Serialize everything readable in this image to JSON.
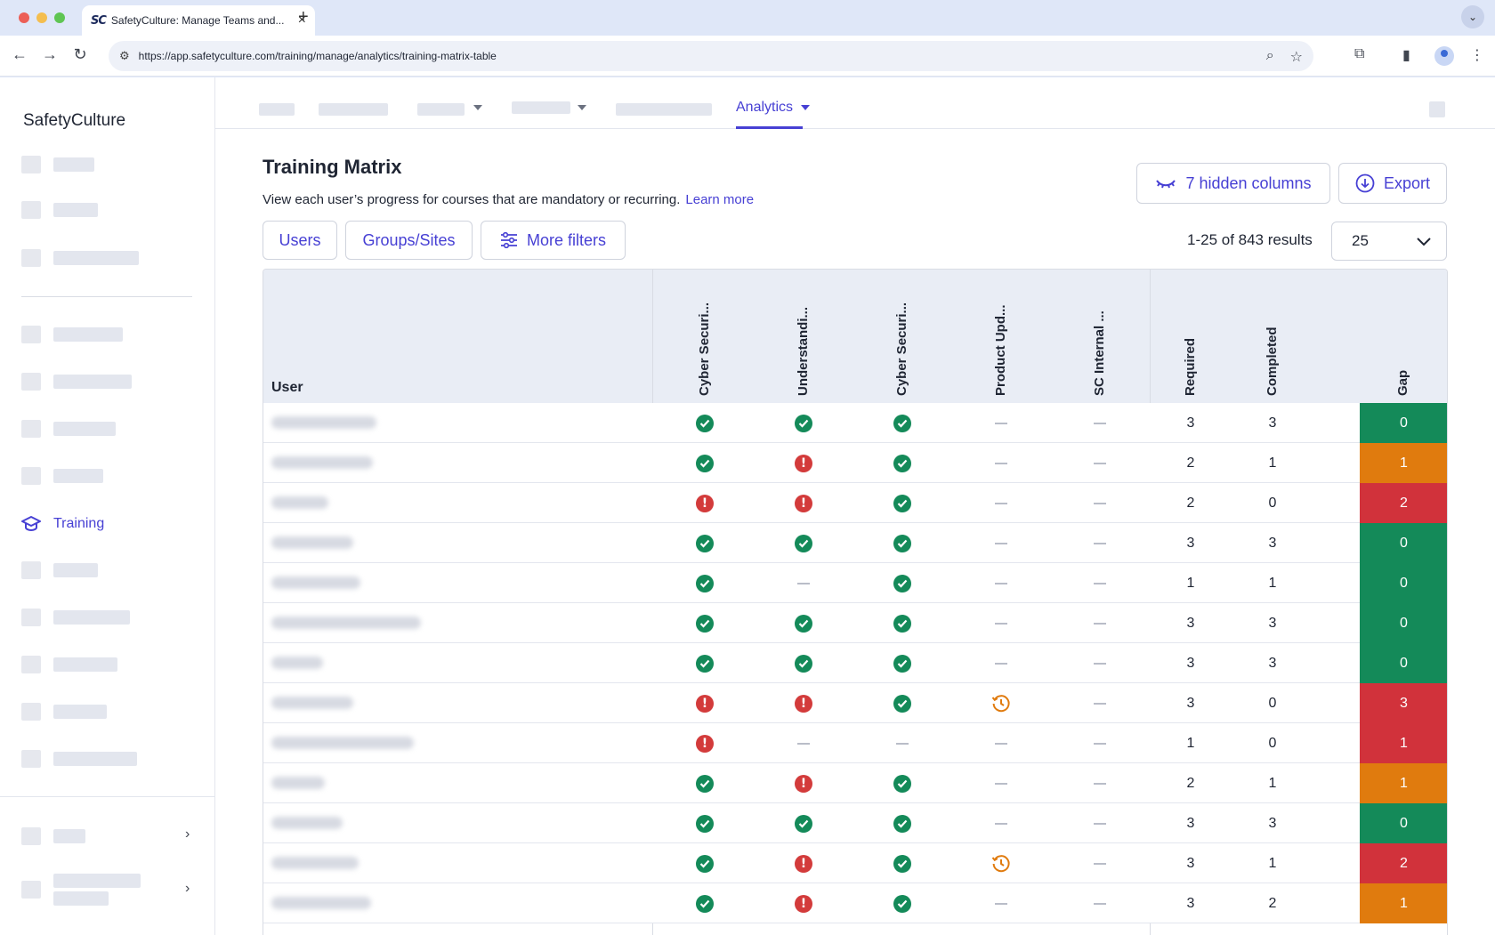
{
  "browser": {
    "tab_title": "SafetyCulture: Manage Teams and...",
    "favicon_text": "SC",
    "url": "https://app.safetyculture.com/training/manage/analytics/training-matrix-table"
  },
  "sidebar": {
    "brand": "SafetyCulture",
    "active_item": "Training"
  },
  "topnav": {
    "active_tab": "Analytics"
  },
  "page": {
    "title": "Training Matrix",
    "description": "View each user’s progress for courses that are mandatory or recurring.",
    "learn_more": "Learn more",
    "hidden_columns_button": "7 hidden columns",
    "export_button": "Export",
    "filters": [
      "Users",
      "Groups/Sites",
      "More filters"
    ],
    "results_text": "1-25 of 843 results",
    "page_size": "25"
  },
  "colors": {
    "accent": "#4740d4",
    "complete": "#148a59",
    "overdue": "#d33b3b",
    "gap_green": "#148a59",
    "gap_orange": "#e07b0e",
    "gap_red": "#d1323b",
    "pending": "#e07b0e"
  },
  "table": {
    "user_header": "User",
    "course_headers": [
      "Cyber Securi...",
      "Understandi...",
      "Cyber Securi...",
      "Product Upd...",
      "SC Internal ..."
    ],
    "summary_headers": [
      "Required",
      "Completed",
      "Gap"
    ],
    "rows": [
      {
        "status": [
          "ok",
          "ok",
          "ok",
          "none",
          "none"
        ],
        "required": "3",
        "completed": "3",
        "gap": "0",
        "gap_level": "green"
      },
      {
        "status": [
          "ok",
          "bad",
          "ok",
          "none",
          "none"
        ],
        "required": "2",
        "completed": "1",
        "gap": "1",
        "gap_level": "orange"
      },
      {
        "status": [
          "bad",
          "bad",
          "ok",
          "none",
          "none"
        ],
        "required": "2",
        "completed": "0",
        "gap": "2",
        "gap_level": "red"
      },
      {
        "status": [
          "ok",
          "ok",
          "ok",
          "none",
          "none"
        ],
        "required": "3",
        "completed": "3",
        "gap": "0",
        "gap_level": "green"
      },
      {
        "status": [
          "ok",
          "none",
          "ok",
          "none",
          "none"
        ],
        "required": "1",
        "completed": "1",
        "gap": "0",
        "gap_level": "green"
      },
      {
        "status": [
          "ok",
          "ok",
          "ok",
          "none",
          "none"
        ],
        "required": "3",
        "completed": "3",
        "gap": "0",
        "gap_level": "green"
      },
      {
        "status": [
          "ok",
          "ok",
          "ok",
          "none",
          "none"
        ],
        "required": "3",
        "completed": "3",
        "gap": "0",
        "gap_level": "green"
      },
      {
        "status": [
          "bad",
          "bad",
          "ok",
          "pending",
          "none"
        ],
        "required": "3",
        "completed": "0",
        "gap": "3",
        "gap_level": "red"
      },
      {
        "status": [
          "bad",
          "none",
          "none",
          "none",
          "none"
        ],
        "required": "1",
        "completed": "0",
        "gap": "1",
        "gap_level": "red"
      },
      {
        "status": [
          "ok",
          "bad",
          "ok",
          "none",
          "none"
        ],
        "required": "2",
        "completed": "1",
        "gap": "1",
        "gap_level": "orange"
      },
      {
        "status": [
          "ok",
          "ok",
          "ok",
          "none",
          "none"
        ],
        "required": "3",
        "completed": "3",
        "gap": "0",
        "gap_level": "green"
      },
      {
        "status": [
          "ok",
          "bad",
          "ok",
          "pending",
          "none"
        ],
        "required": "3",
        "completed": "1",
        "gap": "2",
        "gap_level": "red"
      },
      {
        "status": [
          "ok",
          "bad",
          "ok",
          "none",
          "none"
        ],
        "required": "3",
        "completed": "2",
        "gap": "1",
        "gap_level": "orange"
      }
    ]
  }
}
